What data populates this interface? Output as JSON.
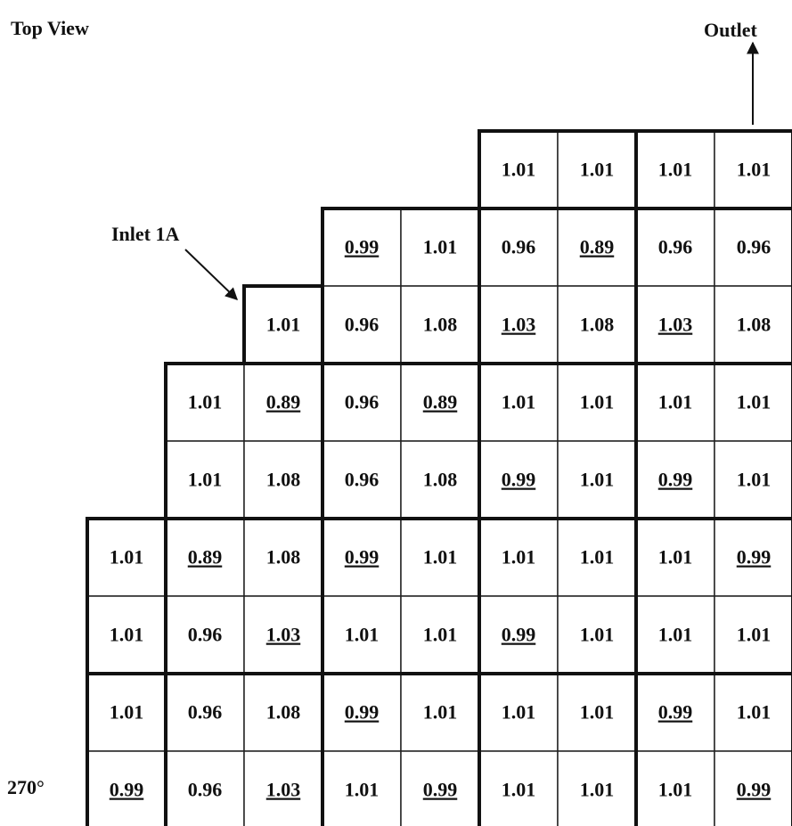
{
  "labels": {
    "title": "Top View",
    "outlet": "Outlet",
    "inlet": "Inlet 1A",
    "angle": "270°"
  },
  "grid": {
    "rows": [
      [
        null,
        null,
        null,
        null,
        null,
        {
          "v": 1.01
        },
        {
          "v": 1.01
        },
        {
          "v": 1.01
        },
        {
          "v": 1.01
        }
      ],
      [
        null,
        null,
        null,
        {
          "v": 0.99,
          "u": true
        },
        {
          "v": 1.01
        },
        {
          "v": 0.96
        },
        {
          "v": 0.89,
          "u": true
        },
        {
          "v": 0.96
        },
        {
          "v": 0.96
        }
      ],
      [
        null,
        null,
        {
          "v": 1.01
        },
        {
          "v": 0.96
        },
        {
          "v": 1.08
        },
        {
          "v": 1.03,
          "u": true
        },
        {
          "v": 1.08
        },
        {
          "v": 1.03,
          "u": true
        },
        {
          "v": 1.08
        }
      ],
      [
        null,
        {
          "v": 1.01
        },
        {
          "v": 0.89,
          "u": true
        },
        {
          "v": 0.96
        },
        {
          "v": 0.89,
          "u": true
        },
        {
          "v": 1.01
        },
        {
          "v": 1.01
        },
        {
          "v": 1.01
        },
        {
          "v": 1.01
        }
      ],
      [
        null,
        {
          "v": 1.01
        },
        {
          "v": 1.08
        },
        {
          "v": 0.96
        },
        {
          "v": 1.08
        },
        {
          "v": 0.99,
          "u": true
        },
        {
          "v": 1.01
        },
        {
          "v": 0.99,
          "u": true
        },
        {
          "v": 1.01
        }
      ],
      [
        {
          "v": 1.01
        },
        {
          "v": 0.89,
          "u": true
        },
        {
          "v": 1.08
        },
        {
          "v": 0.99,
          "u": true
        },
        {
          "v": 1.01
        },
        {
          "v": 1.01
        },
        {
          "v": 1.01
        },
        {
          "v": 1.01
        },
        {
          "v": 0.99,
          "u": true
        }
      ],
      [
        {
          "v": 1.01
        },
        {
          "v": 0.96
        },
        {
          "v": 1.03,
          "u": true
        },
        {
          "v": 1.01
        },
        {
          "v": 1.01
        },
        {
          "v": 0.99,
          "u": true
        },
        {
          "v": 1.01
        },
        {
          "v": 1.01
        },
        {
          "v": 1.01
        }
      ],
      [
        {
          "v": 1.01
        },
        {
          "v": 0.96
        },
        {
          "v": 1.08
        },
        {
          "v": 0.99,
          "u": true
        },
        {
          "v": 1.01
        },
        {
          "v": 1.01
        },
        {
          "v": 1.01
        },
        {
          "v": 0.99,
          "u": true
        },
        {
          "v": 1.01
        }
      ],
      [
        {
          "v": 0.99,
          "u": true
        },
        {
          "v": 0.96
        },
        {
          "v": 1.03,
          "u": true
        },
        {
          "v": 1.01
        },
        {
          "v": 0.99,
          "u": true
        },
        {
          "v": 1.01
        },
        {
          "v": 1.01
        },
        {
          "v": 1.01
        },
        {
          "v": 0.99,
          "u": true
        }
      ]
    ]
  }
}
